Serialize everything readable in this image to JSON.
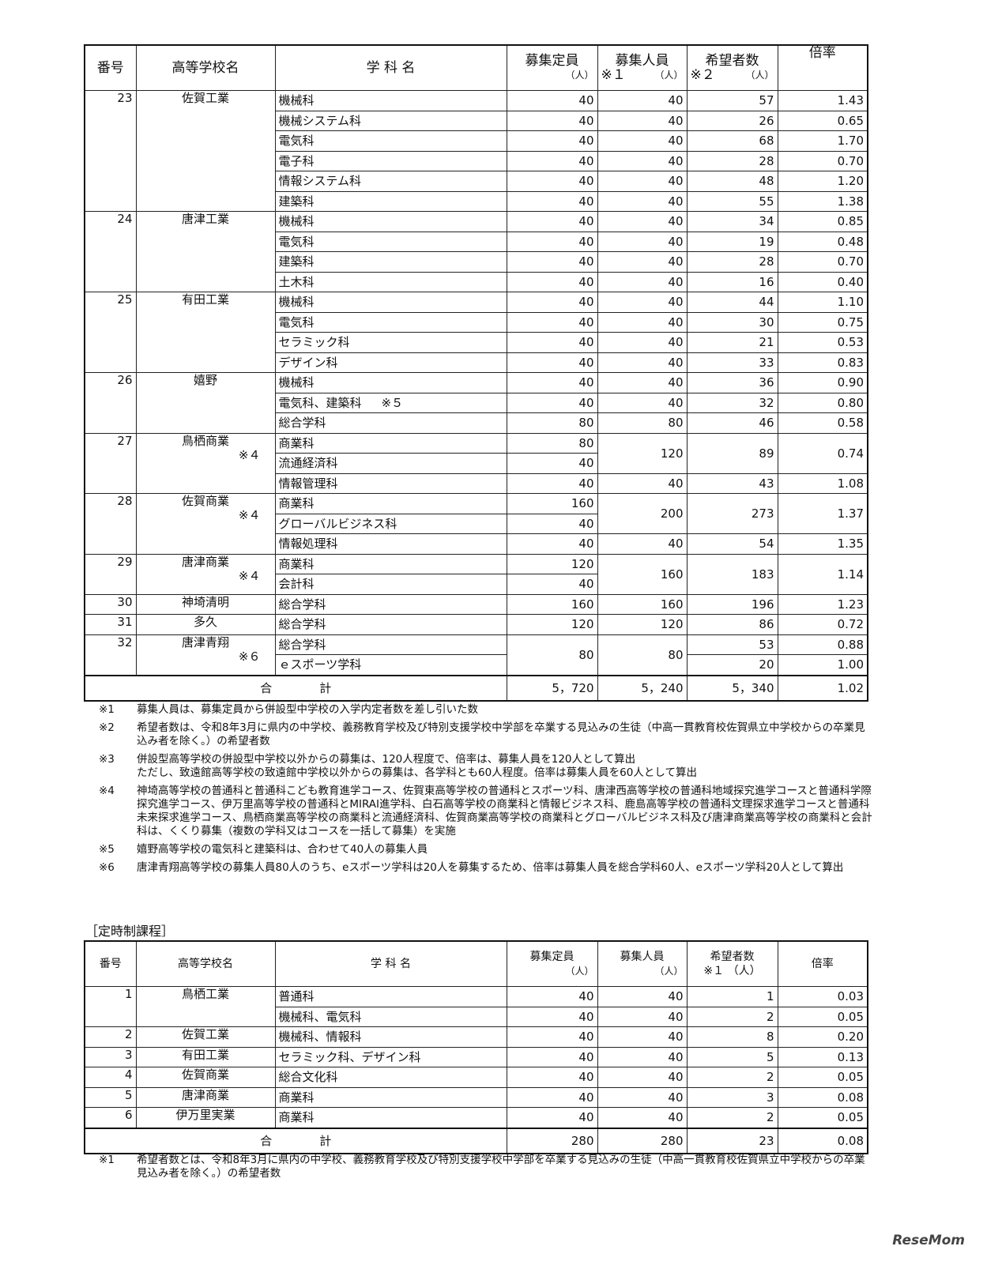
{
  "main_table": {
    "headers": {
      "no": "番号",
      "school": "高等学校名",
      "dept": "学 科 名",
      "capacity": "募集定員",
      "capacity_unit": "（人）",
      "recruit": "募集人員",
      "recruit_note": "※１",
      "recruit_unit": "（人）",
      "applicants": "希望者数",
      "applicants_note": "※２",
      "applicants_unit": "（人）",
      "ratio": "倍率"
    },
    "schools": [
      {
        "no": "23",
        "name": "佐賀工業",
        "rows": [
          {
            "dept": "機械科",
            "capacity": "40",
            "recruit": "40",
            "applicants": "57",
            "ratio": "1.43"
          },
          {
            "dept": "機械システム科",
            "capacity": "40",
            "recruit": "40",
            "applicants": "26",
            "ratio": "0.65"
          },
          {
            "dept": "電気科",
            "capacity": "40",
            "recruit": "40",
            "applicants": "68",
            "ratio": "1.70"
          },
          {
            "dept": "電子科",
            "capacity": "40",
            "recruit": "40",
            "applicants": "28",
            "ratio": "0.70"
          },
          {
            "dept": "情報システム科",
            "capacity": "40",
            "recruit": "40",
            "applicants": "48",
            "ratio": "1.20"
          },
          {
            "dept": "建築科",
            "capacity": "40",
            "recruit": "40",
            "applicants": "55",
            "ratio": "1.38"
          }
        ]
      },
      {
        "no": "24",
        "name": "唐津工業",
        "rows": [
          {
            "dept": "機械科",
            "capacity": "40",
            "recruit": "40",
            "applicants": "34",
            "ratio": "0.85"
          },
          {
            "dept": "電気科",
            "capacity": "40",
            "recruit": "40",
            "applicants": "19",
            "ratio": "0.48"
          },
          {
            "dept": "建築科",
            "capacity": "40",
            "recruit": "40",
            "applicants": "28",
            "ratio": "0.70"
          },
          {
            "dept": "土木科",
            "capacity": "40",
            "recruit": "40",
            "applicants": "16",
            "ratio": "0.40"
          }
        ]
      },
      {
        "no": "25",
        "name": "有田工業",
        "rows": [
          {
            "dept": "機械科",
            "capacity": "40",
            "recruit": "40",
            "applicants": "44",
            "ratio": "1.10"
          },
          {
            "dept": "電気科",
            "capacity": "40",
            "recruit": "40",
            "applicants": "30",
            "ratio": "0.75"
          },
          {
            "dept": "セラミック科",
            "capacity": "40",
            "recruit": "40",
            "applicants": "21",
            "ratio": "0.53"
          },
          {
            "dept": "デザイン科",
            "capacity": "40",
            "recruit": "40",
            "applicants": "33",
            "ratio": "0.83"
          }
        ]
      },
      {
        "no": "26",
        "name": "嬉野",
        "rows": [
          {
            "dept": "機械科",
            "capacity": "40",
            "recruit": "40",
            "applicants": "36",
            "ratio": "0.90"
          },
          {
            "dept": "電気科、建築科",
            "dept_note": "※５",
            "capacity": "40",
            "recruit": "40",
            "applicants": "32",
            "ratio": "0.80"
          },
          {
            "dept": "総合学科",
            "capacity": "80",
            "recruit": "80",
            "applicants": "46",
            "ratio": "0.58"
          }
        ]
      },
      {
        "no": "27",
        "name": "鳥栖商業",
        "note": "※４",
        "rows": [
          {
            "dept": "商業科",
            "capacity": "80",
            "recruit": "120",
            "applicants": "89",
            "ratio": "0.74",
            "merge": 2
          },
          {
            "dept": "流通経済科",
            "capacity": "40"
          },
          {
            "dept": "情報管理科",
            "capacity": "40",
            "recruit": "40",
            "applicants": "43",
            "ratio": "1.08"
          }
        ]
      },
      {
        "no": "28",
        "name": "佐賀商業",
        "note": "※４",
        "rows": [
          {
            "dept": "商業科",
            "capacity": "160",
            "recruit": "200",
            "applicants": "273",
            "ratio": "1.37",
            "merge": 2
          },
          {
            "dept": "グローバルビジネス科",
            "capacity": "40"
          },
          {
            "dept": "情報処理科",
            "capacity": "40",
            "recruit": "40",
            "applicants": "54",
            "ratio": "1.35"
          }
        ]
      },
      {
        "no": "29",
        "name": "唐津商業",
        "note": "※４",
        "rows": [
          {
            "dept": "商業科",
            "capacity": "120",
            "recruit": "160",
            "applicants": "183",
            "ratio": "1.14",
            "merge": 2
          },
          {
            "dept": "会計科",
            "capacity": "40"
          }
        ]
      },
      {
        "no": "30",
        "name": "神埼清明",
        "rows": [
          {
            "dept": "総合学科",
            "capacity": "160",
            "recruit": "160",
            "applicants": "196",
            "ratio": "1.23"
          }
        ]
      },
      {
        "no": "31",
        "name": "多久",
        "rows": [
          {
            "dept": "総合学科",
            "capacity": "120",
            "recruit": "120",
            "applicants": "86",
            "ratio": "0.72"
          }
        ]
      },
      {
        "no": "32",
        "name": "唐津青翔",
        "note": "※６",
        "rows": [
          {
            "dept": "総合学科",
            "capacity": "80",
            "recruit": "80",
            "applicants": "53",
            "ratio": "0.88",
            "merge_capacity": 2
          },
          {
            "dept": "ｅスポーツ学科",
            "applicants": "20",
            "ratio": "1.00"
          }
        ]
      }
    ],
    "total": {
      "label": "合　　　　計",
      "capacity": "5，720",
      "recruit": "5，240",
      "applicants": "5，340",
      "ratio": "1.02"
    }
  },
  "main_notes": [
    {
      "mark": "※1",
      "text": "募集人員は、募集定員から併設型中学校の入学内定者数を差し引いた数"
    },
    {
      "mark": "※2",
      "text": "希望者数は、令和8年3月に県内の中学校、義務教育学校及び特別支援学校中学部を卒業する見込みの生徒（中高一貫教育校佐賀県立中学校からの卒業見込み者を除く。）の希望者数"
    },
    {
      "mark": "※3",
      "text": "併設型高等学校の併設型中学校以外からの募集は、120人程度で、倍率は、募集人員を120人として算出\nただし、致遠館高等学校の致遠館中学校以外からの募集は、各学科とも60人程度。倍率は募集人員を60人として算出"
    },
    {
      "mark": "※4",
      "text": "神埼高等学校の普通科と普通科こども教育進学コース、佐賀東高等学校の普通科とスポーツ科、唐津西高等学校の普通科地域探究進学コースと普通科学際探究進学コース、伊万里高等学校の普通科とMIRAI進学科、白石高等学校の商業科と情報ビジネス科、鹿島高等学校の普通科文理探求進学コースと普通科未来探求進学コース、鳥栖商業高等学校の商業科と流通経済科、佐賀商業高等学校の商業科とグローバルビジネス科及び唐津商業高等学校の商業科と会計科は、くくり募集（複数の学科又はコースを一括して募集）を実施"
    },
    {
      "mark": "※5",
      "text": "嬉野高等学校の電気科と建築科は、合わせて40人の募集人員"
    },
    {
      "mark": "※6",
      "text": "唐津青翔高等学校の募集人員80人のうち、eスポーツ学科は20人を募集するため、倍率は募集人員を総合学科60人、eスポーツ学科20人として算出"
    }
  ],
  "night_section": {
    "title": "［定時制課程］",
    "headers": {
      "no": "番号",
      "school": "高等学校名",
      "dept": "学 科 名",
      "capacity": "募集定員",
      "capacity_unit": "（人）",
      "recruit": "募集人員",
      "recruit_unit": "（人）",
      "applicants": "希望者数",
      "applicants_note": "※１",
      "applicants_unit": "（人）",
      "ratio": "倍率"
    },
    "schools": [
      {
        "no": "1",
        "name": "鳥栖工業",
        "rows": [
          {
            "dept": "普通科",
            "capacity": "40",
            "recruit": "40",
            "applicants": "1",
            "ratio": "0.03"
          },
          {
            "dept": "機械科、電気科",
            "capacity": "40",
            "recruit": "40",
            "applicants": "2",
            "ratio": "0.05"
          }
        ]
      },
      {
        "no": "2",
        "name": "佐賀工業",
        "rows": [
          {
            "dept": "機械科、情報科",
            "capacity": "40",
            "recruit": "40",
            "applicants": "8",
            "ratio": "0.20"
          }
        ]
      },
      {
        "no": "3",
        "name": "有田工業",
        "rows": [
          {
            "dept": "セラミック科、デザイン科",
            "capacity": "40",
            "recruit": "40",
            "applicants": "5",
            "ratio": "0.13"
          }
        ]
      },
      {
        "no": "4",
        "name": "佐賀商業",
        "rows": [
          {
            "dept": "総合文化科",
            "capacity": "40",
            "recruit": "40",
            "applicants": "2",
            "ratio": "0.05"
          }
        ]
      },
      {
        "no": "5",
        "name": "唐津商業",
        "rows": [
          {
            "dept": "商業科",
            "capacity": "40",
            "recruit": "40",
            "applicants": "3",
            "ratio": "0.08"
          }
        ]
      },
      {
        "no": "6",
        "name": "伊万里実業",
        "rows": [
          {
            "dept": "商業科",
            "capacity": "40",
            "recruit": "40",
            "applicants": "2",
            "ratio": "0.05"
          }
        ]
      }
    ],
    "total": {
      "label": "合　　　　計",
      "capacity": "280",
      "recruit": "280",
      "applicants": "23",
      "ratio": "0.08"
    },
    "notes": [
      {
        "mark": "※1",
        "text": "希望者数とは、令和8年3月に県内の中学校、義務教育学校及び特別支援学校中学部を卒業する見込みの生徒（中高一貫教育校佐賀県立中学校からの卒業見込み者を除く。）の希望者数"
      }
    ]
  },
  "watermark": "ReseMom"
}
